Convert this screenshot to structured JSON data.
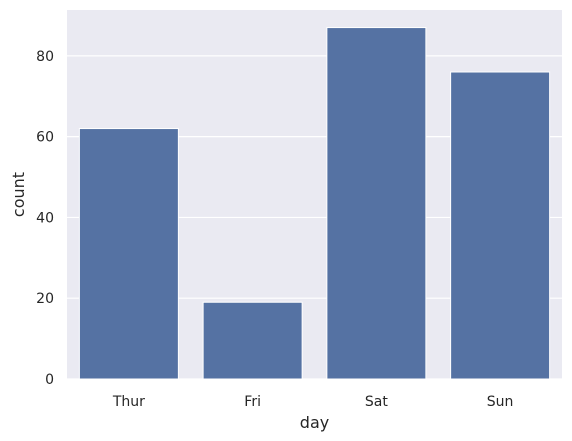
{
  "chart_data": {
    "type": "bar",
    "categories": [
      "Thur",
      "Fri",
      "Sat",
      "Sun"
    ],
    "values": [
      62,
      19,
      87,
      76
    ],
    "xlabel": "day",
    "ylabel": "count",
    "ylim": [
      0,
      91.35
    ],
    "yticks": [
      0,
      20,
      40,
      60,
      80
    ],
    "grid": true,
    "colors": {
      "bar": "#5572a3",
      "plot_background": "#eaeaf2",
      "grid": "#ffffff",
      "text": "#262626"
    }
  }
}
